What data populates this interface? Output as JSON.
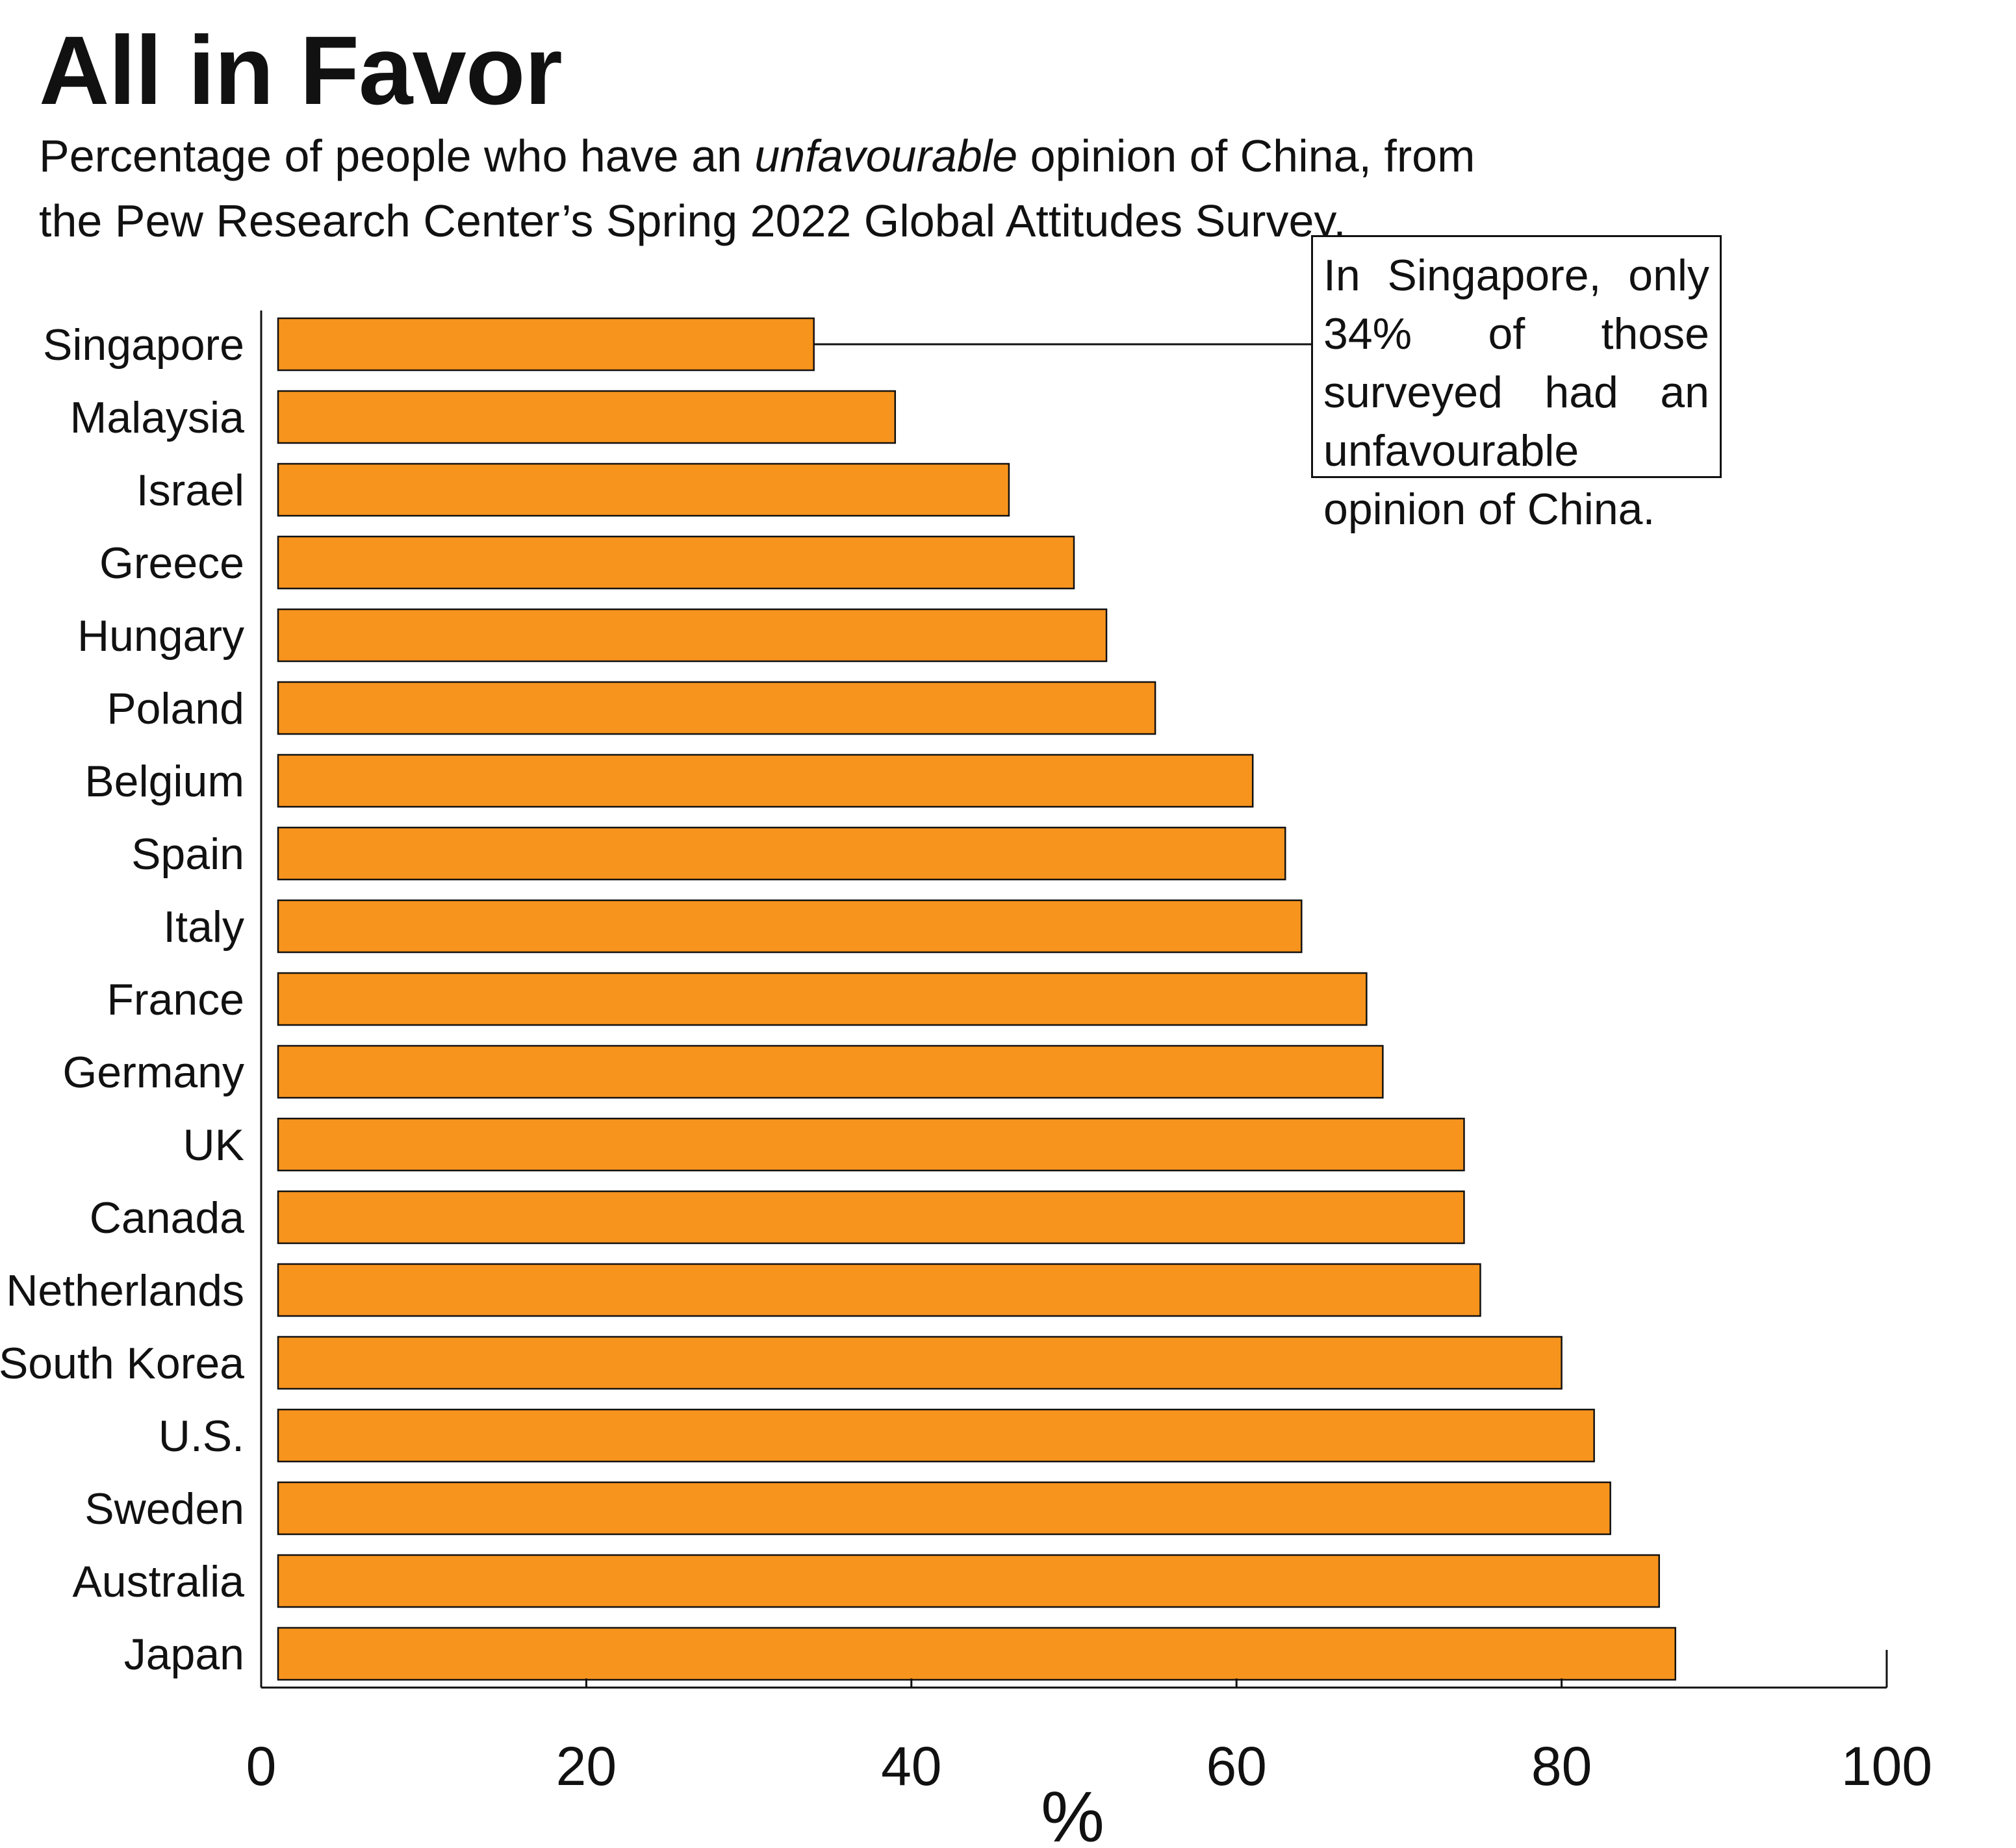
{
  "title": "All in Favor",
  "subtitle": {
    "line1_before": "Percentage of people who have an ",
    "line1_emphasis": "unfavourable",
    "line1_after": " opinion of China, from",
    "line2": "the Pew Research Center’s Spring 2022 Global Attitudes Survey."
  },
  "annotation": {
    "text": "In Singapore, only 34% of those surveyed had an unfavourable opinion of China.",
    "target_category": "Singapore"
  },
  "colors": {
    "bar_fill": "#F7941D",
    "bar_stroke": "#111111",
    "axis": "#111111",
    "background": "#FFFFFF"
  },
  "chart_data": {
    "type": "bar",
    "orientation": "horizontal",
    "title": "All in Favor",
    "xlabel": "%",
    "ylabel": "",
    "xlim": [
      0,
      100
    ],
    "xticks": [
      0,
      20,
      40,
      60,
      80,
      100
    ],
    "grid": false,
    "categories": [
      "Singapore",
      "Malaysia",
      "Israel",
      "Greece",
      "Hungary",
      "Poland",
      "Belgium",
      "Spain",
      "Italy",
      "France",
      "Germany",
      "UK",
      "Canada",
      "Netherlands",
      "South Korea",
      "U.S.",
      "Sweden",
      "Australia",
      "Japan"
    ],
    "values": [
      34,
      39,
      46,
      50,
      52,
      55,
      61,
      63,
      64,
      68,
      69,
      74,
      74,
      75,
      80,
      82,
      83,
      86,
      87
    ]
  }
}
